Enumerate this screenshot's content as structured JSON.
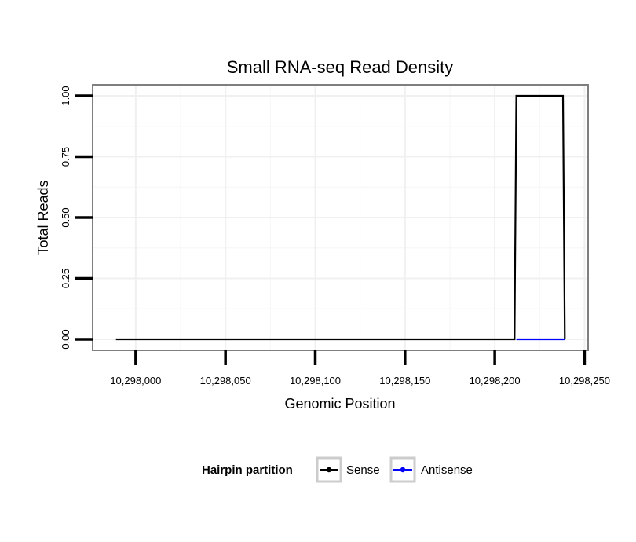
{
  "chart_data": {
    "type": "line",
    "title": "Small RNA-seq Read Density",
    "xlabel": "Genomic Position",
    "ylabel": "Total Reads",
    "xlim": [
      10297976,
      10298252
    ],
    "ylim": [
      -0.045,
      1.045
    ],
    "x_ticks": [
      10298000,
      10298050,
      10298100,
      10298150,
      10298200,
      10298250
    ],
    "x_tick_labels": [
      "10,298,000",
      "10,298,050",
      "10,298,100",
      "10,298,150",
      "10,298,200",
      "10,298,250"
    ],
    "y_ticks": [
      0,
      0.25,
      0.5,
      0.75,
      1.0
    ],
    "y_tick_labels": [
      "0.00",
      "0.25",
      "0.50",
      "0.75",
      "1.00"
    ],
    "grid": true,
    "legend": {
      "title": "Hairpin partition",
      "position": "bottom"
    },
    "series": [
      {
        "name": "Sense",
        "color": "#000000",
        "x": [
          10297989,
          10298211,
          10298212,
          10298238,
          10298239
        ],
        "y": [
          0,
          0,
          1,
          1,
          0
        ]
      },
      {
        "name": "Antisense",
        "color": "#0000ff",
        "x": [
          10298212,
          10298239
        ],
        "y": [
          0,
          0
        ]
      }
    ]
  }
}
